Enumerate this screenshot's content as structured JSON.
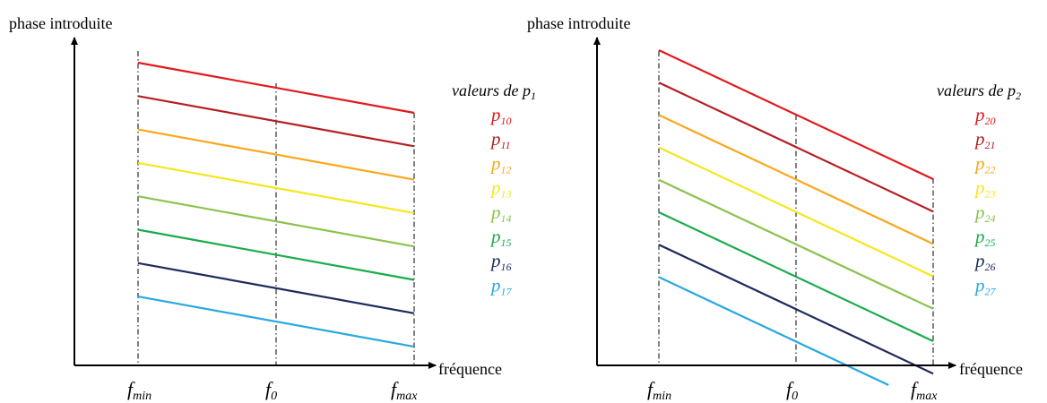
{
  "colors": {
    "axis": "#000000",
    "guide": "#000000",
    "series": [
      "#e3191c",
      "#b51f24",
      "#f9a81a",
      "#f5e71d",
      "#8cc24f",
      "#1aab4c",
      "#1d2a5c",
      "#29a8e0"
    ]
  },
  "panels": [
    {
      "ylabel": "phase introduite",
      "xlabel": "fréquence",
      "ticks": [
        {
          "main": "f",
          "sub": "min"
        },
        {
          "main": "f",
          "sub": "0"
        },
        {
          "main": "f",
          "sub": "max"
        }
      ],
      "legend": {
        "title": "valeurs de p",
        "title_sub": "1",
        "items": [
          {
            "main": "p",
            "sub": "10"
          },
          {
            "main": "p",
            "sub": "11"
          },
          {
            "main": "p",
            "sub": "12"
          },
          {
            "main": "p",
            "sub": "13"
          },
          {
            "main": "p",
            "sub": "14"
          },
          {
            "main": "p",
            "sub": "15"
          },
          {
            "main": "p",
            "sub": "16"
          },
          {
            "main": "p",
            "sub": "17"
          }
        ]
      }
    },
    {
      "ylabel": "phase introduite",
      "xlabel": "fréquence",
      "ticks": [
        {
          "main": "f",
          "sub": "min"
        },
        {
          "main": "f",
          "sub": "0"
        },
        {
          "main": "f",
          "sub": "max"
        }
      ],
      "legend": {
        "title": "valeurs de p",
        "title_sub": "2",
        "items": [
          {
            "main": "p",
            "sub": "20"
          },
          {
            "main": "p",
            "sub": "21"
          },
          {
            "main": "p",
            "sub": "22"
          },
          {
            "main": "p",
            "sub": "23"
          },
          {
            "main": "p",
            "sub": "24"
          },
          {
            "main": "p",
            "sub": "25"
          },
          {
            "main": "p",
            "sub": "26"
          },
          {
            "main": "p",
            "sub": "27"
          }
        ]
      }
    }
  ]
}
